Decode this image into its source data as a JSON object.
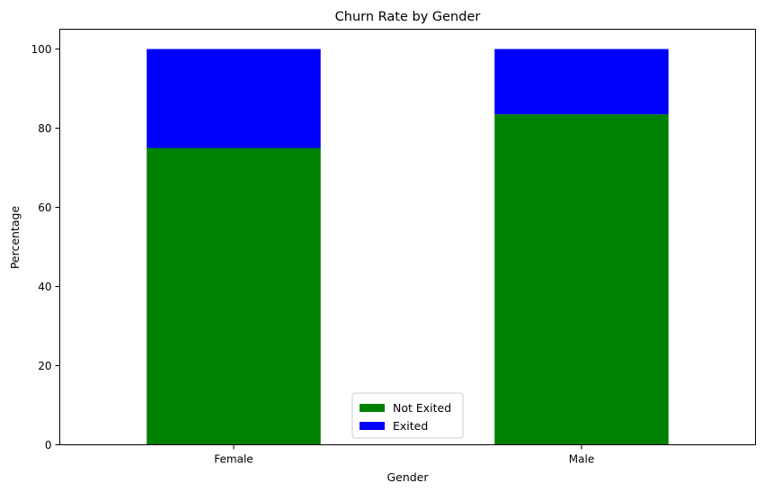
{
  "chart_data": {
    "type": "bar",
    "stacked": true,
    "title": "Churn Rate by Gender",
    "xlabel": "Gender",
    "ylabel": "Percentage",
    "categories": [
      "Female",
      "Male"
    ],
    "series": [
      {
        "name": "Not Exited",
        "values": [
          75.0,
          83.5
        ],
        "color": "#008000"
      },
      {
        "name": "Exited",
        "values": [
          25.0,
          16.5
        ],
        "color": "#0000ff"
      }
    ],
    "ylim": [
      0,
      105
    ],
    "yticks": [
      0,
      20,
      40,
      60,
      80,
      100
    ],
    "grid": false,
    "legend_position": "lower-center"
  }
}
